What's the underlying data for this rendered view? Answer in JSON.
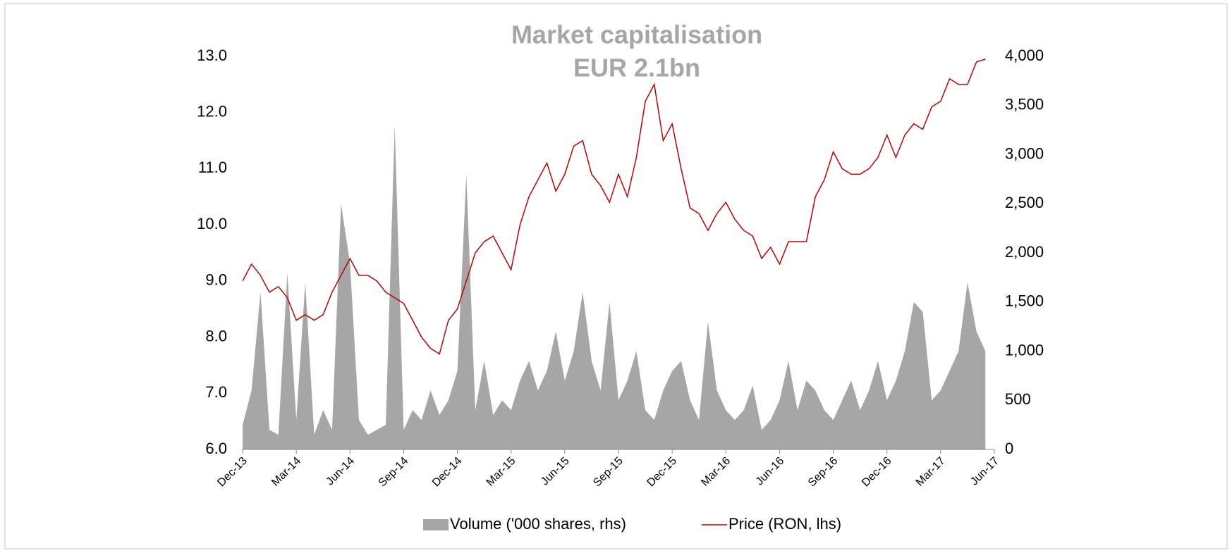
{
  "chart_data": {
    "type": "line",
    "title": "Market capitalisation",
    "subtitle": "EUR 2.1bn",
    "x": [
      0,
      0.5,
      1,
      1.5,
      2,
      2.5,
      3,
      3.5,
      4,
      4.5,
      5,
      5.5,
      6,
      6.5,
      7,
      7.5,
      8,
      8.5,
      9,
      9.5,
      10,
      10.5,
      11,
      11.5,
      12,
      12.5,
      13,
      13.5,
      14,
      14.5,
      15,
      15.5,
      16,
      16.5,
      17,
      17.5,
      18,
      18.5,
      19,
      19.5,
      20,
      20.5,
      21,
      21.5,
      22,
      22.5,
      23,
      23.5,
      24,
      24.5,
      25,
      25.5,
      26,
      26.5,
      27,
      27.5,
      28,
      28.5,
      29,
      29.5,
      30,
      30.5,
      31,
      31.5,
      32,
      32.5,
      33,
      33.5,
      34,
      34.5,
      35,
      35.5,
      36,
      36.5,
      37,
      37.5,
      38,
      38.5,
      39,
      39.5,
      40,
      40.5,
      41,
      41.5
    ],
    "xlim": [
      0,
      42
    ],
    "xticks": [
      {
        "value": 0,
        "label": "Dec-13"
      },
      {
        "value": 3,
        "label": "Mar-14"
      },
      {
        "value": 6,
        "label": "Jun-14"
      },
      {
        "value": 9,
        "label": "Sep-14"
      },
      {
        "value": 12,
        "label": "Dec-14"
      },
      {
        "value": 15,
        "label": "Mar-15"
      },
      {
        "value": 18,
        "label": "Jun-15"
      },
      {
        "value": 21,
        "label": "Sep-15"
      },
      {
        "value": 24,
        "label": "Dec-15"
      },
      {
        "value": 27,
        "label": "Mar-16"
      },
      {
        "value": 30,
        "label": "Jun-16"
      },
      {
        "value": 33,
        "label": "Sep-16"
      },
      {
        "value": 36,
        "label": "Dec-16"
      },
      {
        "value": 39,
        "label": "Mar-17"
      },
      {
        "value": 42,
        "label": "Jun-17"
      }
    ],
    "ylim": [
      6,
      13
    ],
    "yticks": [
      {
        "value": 6,
        "label": "6.0"
      },
      {
        "value": 7,
        "label": "7.0"
      },
      {
        "value": 8,
        "label": "8.0"
      },
      {
        "value": 9,
        "label": "9.0"
      },
      {
        "value": 10,
        "label": "10.0"
      },
      {
        "value": 11,
        "label": "11.0"
      },
      {
        "value": 12,
        "label": "12.0"
      },
      {
        "value": 13,
        "label": "13.0"
      }
    ],
    "y2lim": [
      0,
      4000
    ],
    "y2ticks": [
      0,
      500,
      {
        "value": 1000,
        "label": "1,000"
      },
      {
        "value": 1500,
        "label": "1,500"
      },
      {
        "value": 2000,
        "label": "2,000"
      },
      {
        "value": 2500,
        "label": "2,500"
      },
      {
        "value": 3000,
        "label": "3,000"
      },
      {
        "value": 3500,
        "label": "3,500"
      },
      {
        "value": 4000,
        "label": "4,000"
      }
    ],
    "series": [
      {
        "name": "Volume ('000 shares, rhs)",
        "type": "area",
        "axis": "y2",
        "color": "#a6a6a6",
        "values": [
          250,
          600,
          1600,
          200,
          150,
          1800,
          300,
          1700,
          150,
          400,
          200,
          2500,
          1900,
          300,
          150,
          200,
          250,
          3300,
          200,
          400,
          300,
          600,
          350,
          500,
          800,
          2800,
          400,
          900,
          350,
          500,
          400,
          700,
          900,
          600,
          800,
          1200,
          700,
          1000,
          1600,
          900,
          600,
          1500,
          500,
          700,
          1000,
          400,
          300,
          600,
          800,
          900,
          500,
          300,
          1300,
          600,
          400,
          300,
          400,
          650,
          200,
          300,
          500,
          900,
          400,
          700,
          600,
          400,
          300,
          500,
          700,
          400,
          600,
          900,
          500,
          700,
          1000,
          1500,
          1400,
          500,
          600,
          800,
          1000,
          1700,
          1200,
          1000
        ]
      },
      {
        "name": "Price (RON, lhs)",
        "type": "line",
        "color": "#c00000",
        "values": [
          9.0,
          9.3,
          9.1,
          8.8,
          8.9,
          8.7,
          8.3,
          8.4,
          8.3,
          8.4,
          8.8,
          9.1,
          9.4,
          9.1,
          9.1,
          9.0,
          8.8,
          8.7,
          8.6,
          8.3,
          8.0,
          7.8,
          7.7,
          8.3,
          8.5,
          9.0,
          9.5,
          9.7,
          9.8,
          9.5,
          9.2,
          10.0,
          10.5,
          10.8,
          11.1,
          10.6,
          10.9,
          11.4,
          11.5,
          10.9,
          10.7,
          10.4,
          10.9,
          10.5,
          11.2,
          12.2,
          12.5,
          11.5,
          11.8,
          11.0,
          10.3,
          10.2,
          9.9,
          10.2,
          10.4,
          10.1,
          9.9,
          9.8,
          9.4,
          9.6,
          9.3,
          9.7,
          9.7,
          9.7,
          10.5,
          10.8,
          11.3,
          11.0,
          10.9,
          10.9,
          11.0,
          11.2,
          11.6,
          11.2,
          11.6,
          11.8,
          11.7,
          12.1,
          12.2,
          12.6,
          12.5,
          12.5,
          12.9,
          12.95
        ]
      }
    ]
  }
}
